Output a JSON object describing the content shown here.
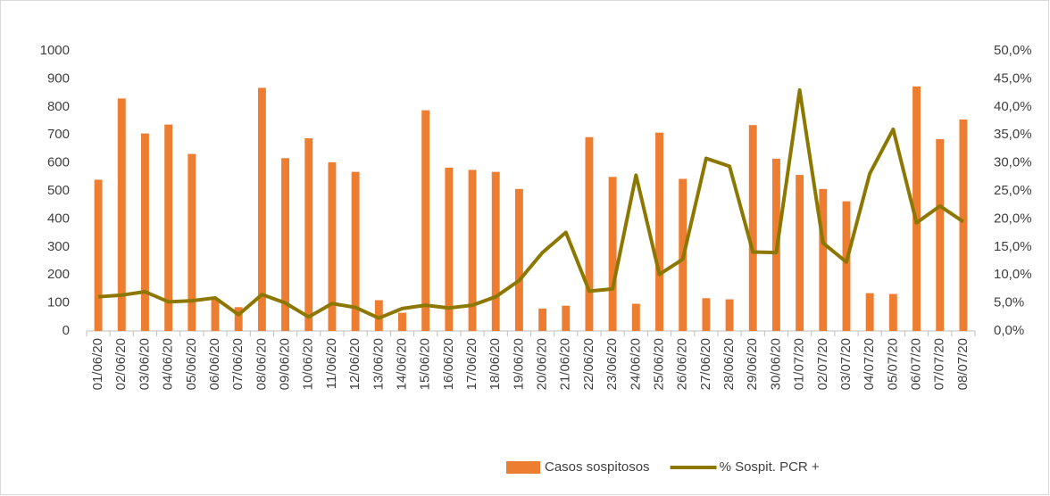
{
  "chart_data": {
    "type": "bar-line",
    "categories": [
      "01/06/20",
      "02/06/20",
      "03/06/20",
      "04/06/20",
      "05/06/20",
      "06/06/20",
      "07/06/20",
      "08/06/20",
      "09/06/20",
      "10/06/20",
      "11/06/20",
      "12/06/20",
      "13/06/20",
      "14/06/20",
      "15/06/20",
      "16/06/20",
      "17/06/20",
      "18/06/20",
      "19/06/20",
      "20/06/20",
      "21/06/20",
      "22/06/20",
      "23/06/20",
      "24/06/20",
      "25/06/20",
      "26/06/20",
      "27/06/20",
      "28/06/20",
      "29/06/20",
      "30/06/20",
      "01/07/20",
      "02/07/20",
      "03/07/20",
      "04/07/20",
      "05/07/20",
      "06/07/20",
      "07/07/20",
      "08/07/20"
    ],
    "series": [
      {
        "name": "Casos sospitosos",
        "type": "bar",
        "color": "#ed7d31",
        "values": [
          540,
          830,
          705,
          737,
          632,
          115,
          85,
          868,
          617,
          688,
          602,
          568,
          110,
          65,
          788,
          583,
          575,
          568,
          507,
          80,
          90,
          692,
          550,
          97,
          708,
          543,
          117,
          113,
          735,
          615,
          557,
          507,
          463,
          135,
          132,
          873,
          685,
          755
        ]
      },
      {
        "name": "% Sospit. PCR +",
        "type": "line",
        "axis": "y2",
        "color": "#8c7800",
        "values": [
          6.1,
          6.4,
          7.0,
          5.2,
          5.4,
          5.9,
          2.9,
          6.5,
          5.0,
          2.5,
          4.9,
          4.2,
          2.3,
          4.0,
          4.6,
          4.1,
          4.6,
          6.1,
          9.0,
          14.0,
          17.6,
          7.1,
          7.5,
          27.8,
          10.1,
          12.8,
          30.8,
          29.4,
          14.1,
          14.0,
          43.0,
          15.7,
          12.3,
          28.1,
          36.0,
          19.3,
          22.3,
          19.5
        ]
      }
    ],
    "ylim": [
      0,
      1000
    ],
    "yticks": [
      0,
      100,
      200,
      300,
      400,
      500,
      600,
      700,
      800,
      900,
      1000
    ],
    "y2lim": [
      0,
      50
    ],
    "y2ticks": [
      {
        "value": 0,
        "label": "0,0%"
      },
      {
        "value": 5,
        "label": "5,0%"
      },
      {
        "value": 10,
        "label": "10,0%"
      },
      {
        "value": 15,
        "label": "15,0%"
      },
      {
        "value": 20,
        "label": "20,0%"
      },
      {
        "value": 25,
        "label": "25,0%"
      },
      {
        "value": 30,
        "label": "30,0%"
      },
      {
        "value": 35,
        "label": "35,0%"
      },
      {
        "value": 40,
        "label": "40,0%"
      },
      {
        "value": 45,
        "label": "45,0%"
      },
      {
        "value": 50,
        "label": "50,0%"
      }
    ],
    "grid": false,
    "legend": "bottom"
  }
}
